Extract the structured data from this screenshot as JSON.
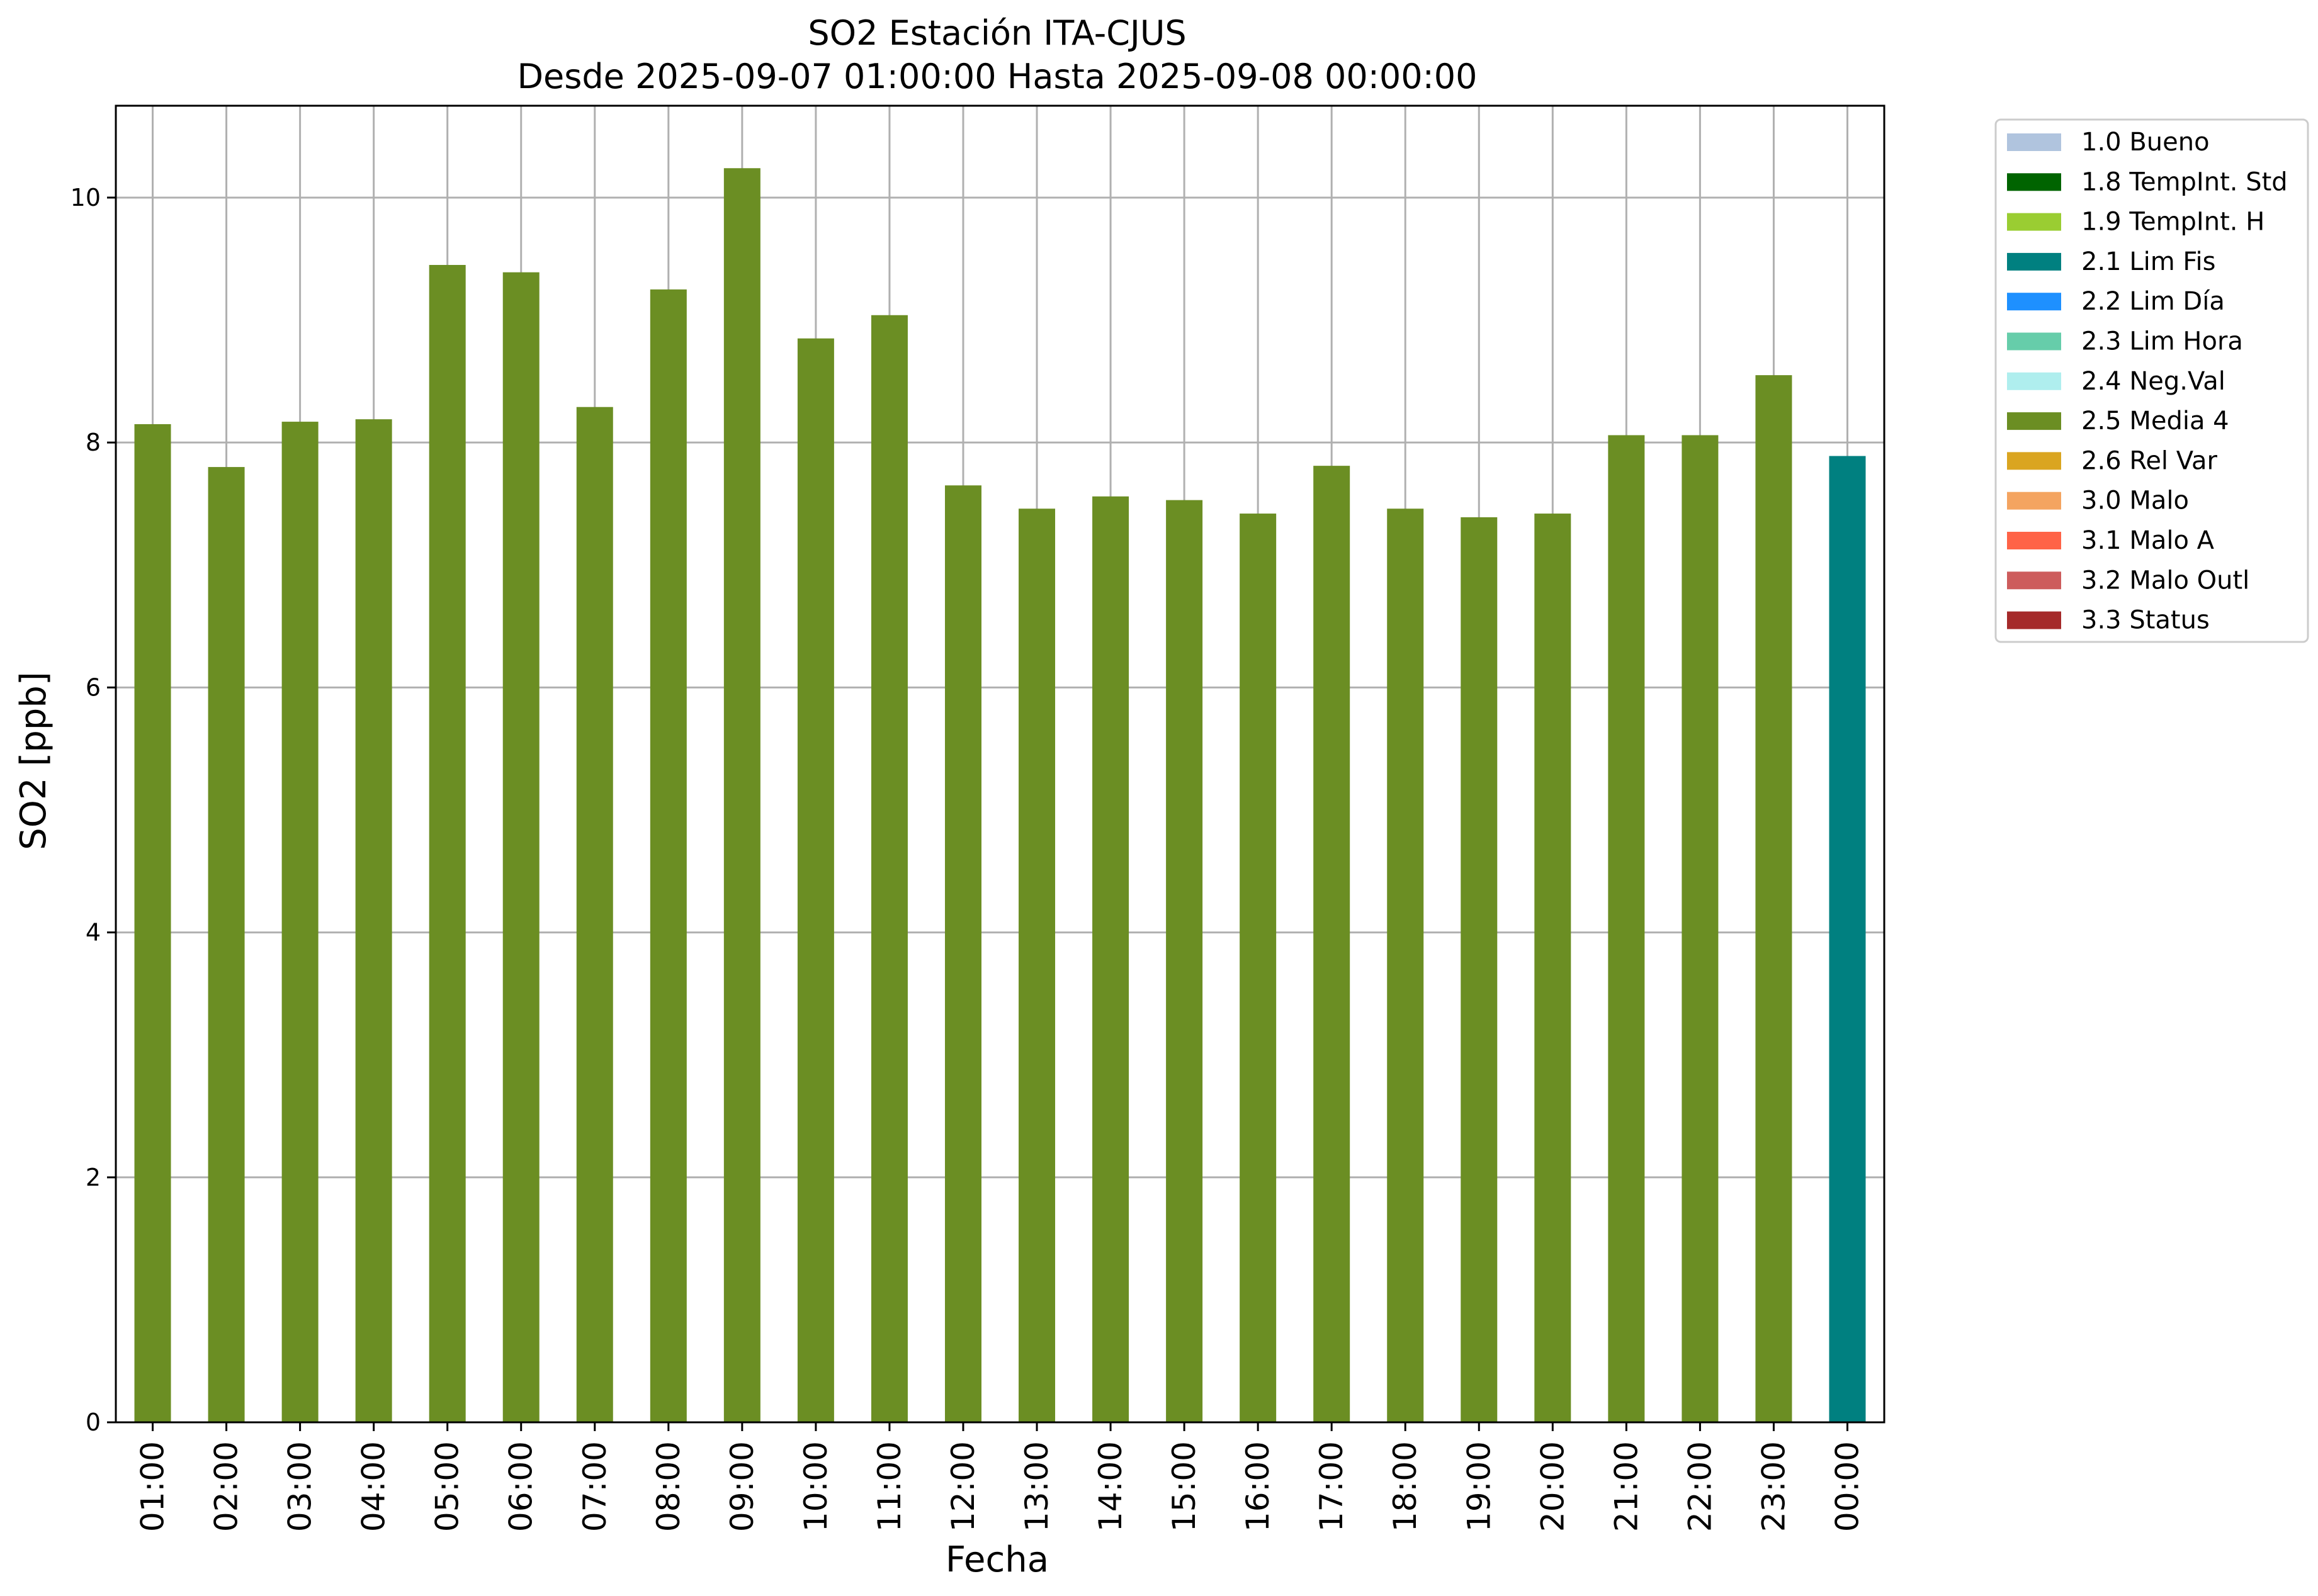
{
  "chart_data": {
    "type": "bar",
    "title": "SO2 Estación ITA-CJUS",
    "subtitle": "Desde 2025-09-07 01:00:00 Hasta 2025-09-08 00:00:00",
    "xlabel": "Fecha",
    "ylabel": "SO2 [ppb]",
    "ylim": [
      0,
      10.75
    ],
    "yticks": [
      0,
      2,
      4,
      6,
      8,
      10
    ],
    "grid": true,
    "legend_position": "outside-top-right",
    "categories": [
      "01:00",
      "02:00",
      "03:00",
      "04:00",
      "05:00",
      "06:00",
      "07:00",
      "08:00",
      "09:00",
      "10:00",
      "11:00",
      "12:00",
      "13:00",
      "14:00",
      "15:00",
      "16:00",
      "17:00",
      "18:00",
      "19:00",
      "20:00",
      "21:00",
      "22:00",
      "23:00",
      "00:00"
    ],
    "values": [
      8.15,
      7.8,
      8.17,
      8.19,
      9.45,
      9.39,
      8.29,
      9.25,
      10.24,
      8.85,
      9.04,
      7.65,
      7.46,
      7.56,
      7.53,
      7.42,
      7.81,
      7.46,
      7.39,
      7.42,
      8.06,
      8.06,
      8.55,
      7.89
    ],
    "flags": [
      "2.5 Media 4",
      "2.5 Media 4",
      "2.5 Media 4",
      "2.5 Media 4",
      "2.5 Media 4",
      "2.5 Media 4",
      "2.5 Media 4",
      "2.5 Media 4",
      "2.5 Media 4",
      "2.5 Media 4",
      "2.5 Media 4",
      "2.5 Media 4",
      "2.5 Media 4",
      "2.5 Media 4",
      "2.5 Media 4",
      "2.5 Media 4",
      "2.5 Media 4",
      "2.5 Media 4",
      "2.5 Media 4",
      "2.5 Media 4",
      "2.5 Media 4",
      "2.5 Media 4",
      "2.5 Media 4",
      "2.1 Lim Fis"
    ],
    "legend": [
      {
        "label": "1.0 Bueno",
        "color": "#b0c4de"
      },
      {
        "label": "1.8 TempInt. Std",
        "color": "#006400"
      },
      {
        "label": "1.9 TempInt. H",
        "color": "#9acd32"
      },
      {
        "label": "2.1 Lim Fis",
        "color": "#008080"
      },
      {
        "label": "2.2 Lim Día",
        "color": "#1e90ff"
      },
      {
        "label": "2.3 Lim Hora",
        "color": "#66cdaa"
      },
      {
        "label": "2.4 Neg.Val",
        "color": "#afeeee"
      },
      {
        "label": "2.5 Media 4",
        "color": "#6b8e23"
      },
      {
        "label": "2.6 Rel Var",
        "color": "#daa520"
      },
      {
        "label": "3.0 Malo",
        "color": "#f4a460"
      },
      {
        "label": "3.1 Malo A",
        "color": "#ff6347"
      },
      {
        "label": "3.2 Malo Outl",
        "color": "#cd5c5c"
      },
      {
        "label": "3.3 Status",
        "color": "#a52a2a"
      }
    ]
  }
}
